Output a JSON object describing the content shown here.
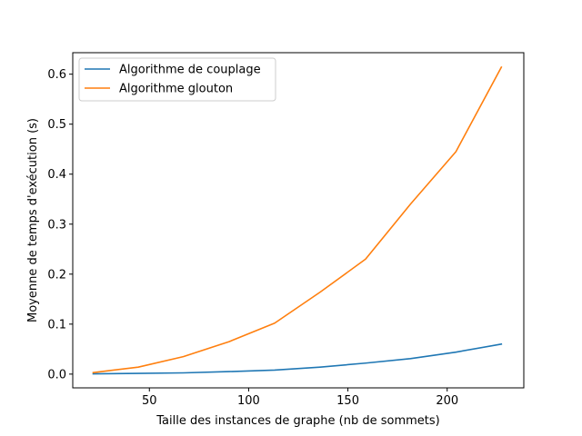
{
  "chart_data": {
    "type": "line",
    "title": "",
    "xlabel": "Taille des instances de graphe (nb de sommets)",
    "ylabel": "Moyenne de temps d'exécution (s)",
    "xlim": [
      11.4,
      238.6
    ],
    "ylim": [
      -0.0275,
      0.643
    ],
    "x_ticks": [
      50,
      100,
      150,
      200
    ],
    "x_tick_labels": [
      "50",
      "100",
      "150",
      "200"
    ],
    "y_ticks": [
      0.0,
      0.1,
      0.2,
      0.3,
      0.4,
      0.5,
      0.6
    ],
    "y_tick_labels": [
      "0.0",
      "0.1",
      "0.2",
      "0.3",
      "0.4",
      "0.5",
      "0.6"
    ],
    "grid": false,
    "legend_position": "upper-left",
    "x": [
      21.7,
      44.4,
      67.1,
      90.2,
      113.1,
      136.0,
      158.9,
      181.5,
      204.4,
      227.3
    ],
    "series": [
      {
        "name": "Algorithme de couplage",
        "color": "#1f77b4",
        "values": [
          0.0005,
          0.0015,
          0.0025,
          0.005,
          0.008,
          0.014,
          0.022,
          0.031,
          0.044,
          0.06
        ]
      },
      {
        "name": "Algorithme glouton",
        "color": "#ff7f0e",
        "values": [
          0.003,
          0.014,
          0.035,
          0.065,
          0.102,
          0.164,
          0.23,
          0.34,
          0.445,
          0.614
        ]
      }
    ]
  }
}
